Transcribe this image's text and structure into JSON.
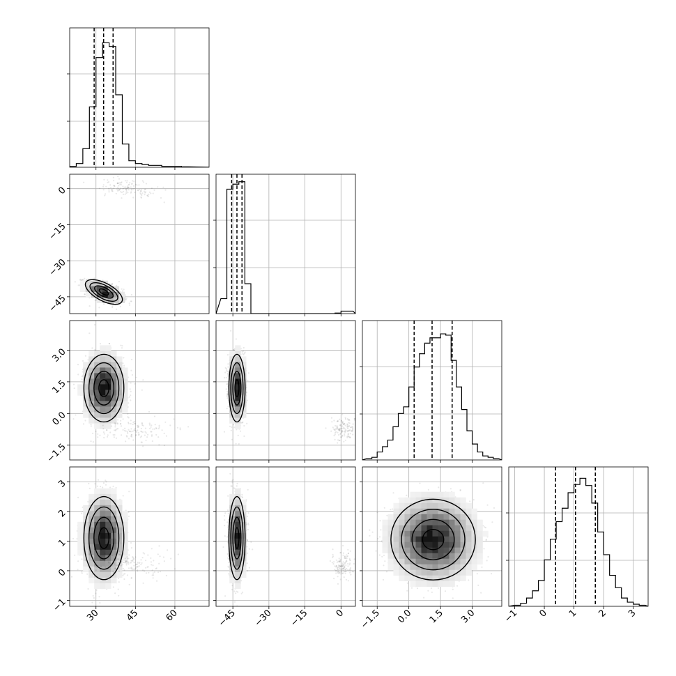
{
  "chart_data": {
    "type": "corner",
    "grid": true,
    "parameters": [
      {
        "index": 0,
        "range": [
          20,
          73
        ],
        "ticks": [
          30,
          45,
          60
        ],
        "tick_labels": [
          "30",
          "45",
          "60"
        ],
        "hist_bins": [
          20,
          22.5,
          25,
          27.5,
          30,
          32.5,
          35,
          37.5,
          40,
          42.5,
          45,
          47.5,
          50,
          52.5,
          55,
          57.5,
          60,
          62.5,
          65
        ],
        "hist_counts": [
          1,
          4,
          20,
          65,
          118,
          134,
          130,
          78,
          25,
          7,
          4,
          3,
          2,
          2,
          1,
          1,
          1,
          0.5
        ],
        "hist_ymax": 150,
        "quantiles": [
          29.3,
          32.9,
          36.5
        ]
      },
      {
        "index": 1,
        "range": [
          -52,
          6
        ],
        "ticks": [
          -45,
          -30,
          -15,
          0
        ],
        "tick_labels": [
          "−45",
          "−30",
          "−15",
          "0"
        ],
        "hist_bins": [
          -50,
          -47.5,
          -45,
          -42.5,
          -40,
          -37.5,
          -35,
          -32.5,
          -30,
          -27.5,
          -25,
          -22.5,
          -20,
          -17.5,
          -15,
          -12.5,
          -10,
          -7.5,
          -5,
          -2.5,
          0,
          2.5,
          5
        ],
        "hist_counts": [
          30,
          250,
          260,
          265,
          60,
          0,
          0,
          0,
          0,
          0,
          0,
          0,
          0,
          0,
          0,
          0,
          0,
          0,
          0,
          1,
          5,
          5
        ],
        "hist_ymax": 280,
        "quantiles": [
          -45.5,
          -43.3,
          -41.2
        ]
      },
      {
        "index": 2,
        "range": [
          -2.2,
          4.4
        ],
        "ticks": [
          -1.5,
          0.0,
          1.5,
          3.0
        ],
        "tick_labels": [
          "−1.5",
          "0.0",
          "1.5",
          "3.0"
        ],
        "hist_bins": [
          -2.0,
          -1.75,
          -1.5,
          -1.25,
          -1.0,
          -0.75,
          -0.5,
          -0.25,
          0.0,
          0.25,
          0.5,
          0.75,
          1.0,
          1.25,
          1.5,
          1.75,
          2.0,
          2.25,
          2.5,
          2.75,
          3.0,
          3.25,
          3.5,
          3.75,
          4.0,
          4.25
        ],
        "hist_counts": [
          1,
          2,
          6,
          10,
          15,
          25,
          35,
          40,
          55,
          70,
          80,
          88,
          92,
          92,
          95,
          94,
          75,
          55,
          38,
          22,
          12,
          6,
          3,
          2,
          1
        ],
        "hist_ymax": 105,
        "quantiles": [
          0.25,
          1.1,
          2.05
        ]
      },
      {
        "index": 3,
        "range": [
          -1.2,
          3.5
        ],
        "ticks": [
          -1,
          0,
          1,
          2,
          3
        ],
        "tick_labels": [
          "−1",
          "0",
          "1",
          "2",
          "3"
        ],
        "hist_bins": [
          -1.0,
          -0.8,
          -0.6,
          -0.4,
          -0.2,
          0.0,
          0.2,
          0.4,
          0.6,
          0.8,
          1.0,
          1.2,
          1.4,
          1.6,
          1.8,
          2.0,
          2.2,
          2.4,
          2.6,
          2.8,
          3.0,
          3.2,
          3.4
        ],
        "hist_counts": [
          1,
          3,
          8,
          15,
          25,
          45,
          65,
          82,
          95,
          110,
          118,
          124,
          117,
          100,
          72,
          50,
          30,
          18,
          8,
          4,
          2,
          1
        ],
        "hist_ymax": 135,
        "quantiles": [
          0.38,
          1.05,
          1.72
        ]
      }
    ],
    "panels_2d": [
      {
        "row": 1,
        "col": 0,
        "clusters": [
          {
            "center": [
              33,
              -43
            ],
            "sd": [
              3.5,
              2.2
            ],
            "rho": -0.55,
            "n": 1100,
            "contours": true
          },
          {
            "center": [
              42,
              0
            ],
            "sd": [
              6,
              2
            ],
            "rho": -0.3,
            "n": 130,
            "contours": false
          }
        ]
      },
      {
        "row": 2,
        "col": 0,
        "clusters": [
          {
            "center": [
              33,
              1.2
            ],
            "sd": [
              3.8,
              0.8
            ],
            "rho": 0,
            "n": 1100,
            "contours": true
          },
          {
            "center": [
              45,
              -0.8
            ],
            "sd": [
              7,
              0.28
            ],
            "rho": 0,
            "n": 130,
            "contours": false
          }
        ]
      },
      {
        "row": 2,
        "col": 1,
        "clusters": [
          {
            "center": [
              -43.3,
              1.2
            ],
            "sd": [
              1.7,
              0.8
            ],
            "rho": 0,
            "n": 1100,
            "contours": true
          },
          {
            "center": [
              1,
              -0.7
            ],
            "sd": [
              2.5,
              0.28
            ],
            "rho": 0,
            "n": 130,
            "contours": false
          }
        ]
      },
      {
        "row": 3,
        "col": 0,
        "clusters": [
          {
            "center": [
              33,
              1.1
            ],
            "sd": [
              3.8,
              0.7
            ],
            "rho": 0,
            "n": 1100,
            "contours": true
          },
          {
            "center": [
              45,
              0.2
            ],
            "sd": [
              7,
              0.25
            ],
            "rho": 0,
            "n": 130,
            "contours": false
          }
        ]
      },
      {
        "row": 3,
        "col": 1,
        "clusters": [
          {
            "center": [
              -43.3,
              1.1
            ],
            "sd": [
              1.7,
              0.7
            ],
            "rho": 0,
            "n": 1100,
            "contours": true
          },
          {
            "center": [
              1,
              0.2
            ],
            "sd": [
              2.5,
              0.25
            ],
            "rho": 0,
            "n": 130,
            "contours": false
          }
        ]
      },
      {
        "row": 3,
        "col": 2,
        "clusters": [
          {
            "center": [
              1.15,
              1.05
            ],
            "sd": [
              1.0,
              0.68
            ],
            "rho": 0,
            "n": 1300,
            "contours": true
          }
        ]
      }
    ],
    "contour_levels_sigma": [
      0.5,
      1.0,
      1.5,
      2.0
    ]
  }
}
